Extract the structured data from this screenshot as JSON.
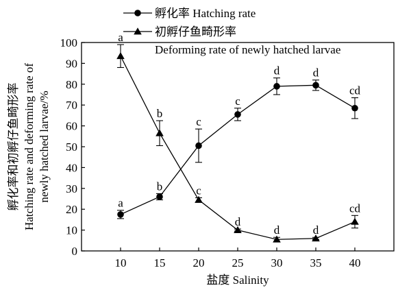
{
  "chart_data": {
    "type": "line",
    "x": [
      10,
      15,
      20,
      25,
      30,
      35,
      40
    ],
    "xlabel": "盐度 Salinity",
    "ylabel_lines": [
      "孵化率和初孵仔鱼畸形率",
      "Hatching rate and deforming rate of",
      "newly hatched larvae/%"
    ],
    "xlim": [
      5,
      45
    ],
    "ylim": [
      0,
      100
    ],
    "yticks": [
      0,
      10,
      20,
      30,
      40,
      50,
      60,
      70,
      80,
      90,
      100
    ],
    "xticks": [
      10,
      15,
      20,
      25,
      30,
      35,
      40
    ],
    "legend_position": "top-left",
    "series": [
      {
        "name": "孵化率 Hatching rate",
        "marker": "circle",
        "values": [
          17.5,
          26.0,
          50.5,
          65.5,
          79.0,
          79.5,
          68.5
        ],
        "error": [
          2.0,
          1.5,
          8.0,
          3.0,
          4.0,
          2.5,
          5.0
        ],
        "labels": [
          "a",
          "b",
          "c",
          "c",
          "d",
          "d",
          "cd"
        ]
      },
      {
        "name": "初孵仔鱼畸形率",
        "name_line2": "Deforming rate of newly hatched larvae",
        "marker": "triangle",
        "values": [
          93.5,
          56.5,
          24.5,
          10.0,
          5.5,
          6.0,
          14.0
        ],
        "error": [
          5.5,
          6.0,
          1.0,
          0.5,
          1.0,
          0.5,
          3.0
        ],
        "labels": [
          "a",
          "b",
          "c",
          "d",
          "d",
          "d",
          "cd"
        ]
      }
    ]
  }
}
